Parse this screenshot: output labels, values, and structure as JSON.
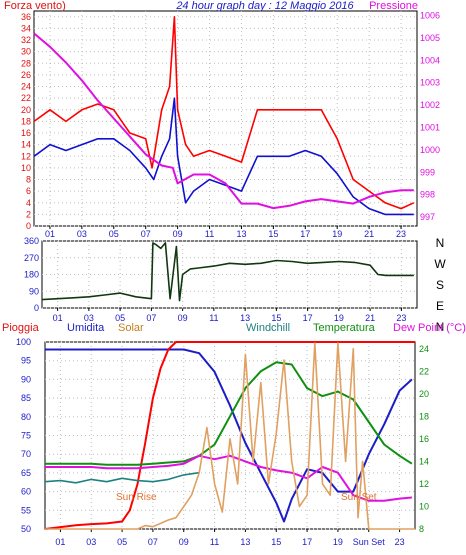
{
  "chart_data": [
    {
      "id": "wind_pressure",
      "type": "line",
      "title": "24 hour graph day : 12 Maggio 2016",
      "left_label": "Forza vento)",
      "right_label": "Pressione",
      "colors": {
        "title": "#1c1cc8",
        "left_label": "#e01010",
        "right_label": "#e010e0",
        "left_ticks": "#e01010",
        "right_ticks": "#e010e0",
        "x_ticks": "#1c1cc8"
      },
      "x_ticks": [
        "01",
        "03",
        "05",
        "07",
        "09",
        "11",
        "13",
        "15",
        "17",
        "19",
        "21",
        "23"
      ],
      "xlim": [
        0,
        24
      ],
      "y_ticks": [
        "0",
        "2",
        "4",
        "6",
        "8",
        "10",
        "12",
        "14",
        "16",
        "18",
        "20",
        "22",
        "24",
        "26",
        "28",
        "30",
        "32",
        "34",
        "36"
      ],
      "ylim": [
        0,
        37
      ],
      "y2_ticks": [
        "997",
        "998",
        "999",
        "1000",
        "1001",
        "1002",
        "1003",
        "1004",
        "1005",
        "1006"
      ],
      "y2lim": [
        996.6,
        1006.2
      ],
      "series": [
        {
          "key": "wind_gust",
          "color": "#ff0000",
          "axis": "left",
          "x": [
            0,
            1,
            2,
            3,
            4,
            5,
            6,
            7,
            7.4,
            8,
            8.5,
            8.8,
            9,
            9.5,
            10,
            11,
            12,
            13,
            14,
            15,
            16,
            17,
            18,
            19,
            20,
            21,
            22,
            23,
            23.8
          ],
          "y": [
            18,
            20,
            18,
            20,
            21,
            20,
            16,
            15,
            10,
            20,
            24,
            36,
            20,
            14,
            12,
            13,
            12,
            11,
            20,
            20,
            20,
            20,
            20,
            15,
            8,
            6,
            4,
            3,
            4
          ]
        },
        {
          "key": "wind_avg",
          "color": "#1010d0",
          "axis": "left",
          "x": [
            0,
            1,
            2,
            3,
            4,
            5,
            6,
            7,
            7.5,
            8,
            8.5,
            8.8,
            9,
            9.5,
            10,
            11,
            12,
            13,
            14,
            15,
            16,
            17,
            18,
            19,
            20,
            21,
            22,
            23,
            23.8
          ],
          "y": [
            12,
            14,
            13,
            14,
            15,
            15,
            13,
            10,
            8,
            12,
            15,
            22,
            12,
            4,
            6,
            8,
            7,
            6,
            12,
            12,
            12,
            13,
            12,
            9,
            5,
            3,
            2,
            2,
            2
          ]
        },
        {
          "key": "pressure",
          "color": "#e010e0",
          "axis": "right",
          "x": [
            0,
            1,
            2,
            3,
            4,
            5,
            6,
            7,
            8,
            8.7,
            9,
            10,
            11,
            12,
            13,
            14,
            15,
            16,
            17,
            18,
            19,
            20,
            21,
            22,
            23,
            23.8
          ],
          "y": [
            1005.2,
            1004.6,
            1003.9,
            1003.1,
            1002.2,
            1001.4,
            1000.6,
            999.8,
            999.3,
            999.2,
            998.5,
            998.9,
            998.9,
            998.5,
            997.6,
            997.6,
            997.4,
            997.5,
            997.7,
            997.8,
            997.7,
            997.6,
            997.9,
            998.1,
            998.2,
            998.2
          ]
        }
      ]
    },
    {
      "id": "wind_direction",
      "type": "line",
      "x_ticks": [
        "01",
        "03",
        "05",
        "07",
        "09",
        "11",
        "13",
        "15",
        "17",
        "19",
        "21",
        "23"
      ],
      "xlim": [
        0,
        24
      ],
      "y_ticks": [
        "0",
        "90",
        "180",
        "270",
        "360"
      ],
      "ylim": [
        0,
        360
      ],
      "compass": [
        "N",
        "W",
        "S",
        "E",
        "N"
      ],
      "colors": {
        "left_ticks": "#1c1cc8",
        "x_ticks": "#1c1cc8"
      },
      "series": [
        {
          "key": "direction",
          "color": "#103810",
          "axis": "left",
          "x": [
            0,
            1,
            2,
            3,
            4,
            5,
            6,
            7,
            7.1,
            7.3,
            7.6,
            7.9,
            8.2,
            8.6,
            8.8,
            9,
            9.5,
            10,
            11,
            12,
            13,
            14,
            15,
            16,
            17,
            18,
            19,
            20,
            21,
            21.5,
            22,
            23,
            23.8
          ],
          "y": [
            45,
            50,
            55,
            60,
            70,
            80,
            60,
            50,
            350,
            340,
            320,
            350,
            50,
            330,
            40,
            180,
            210,
            215,
            225,
            240,
            235,
            240,
            255,
            250,
            240,
            245,
            250,
            245,
            230,
            180,
            175,
            175,
            175
          ]
        }
      ]
    },
    {
      "id": "atmo",
      "type": "line",
      "legend": [
        "Pioggia",
        "Umidita",
        "Solar",
        "Windchill",
        "Temperatura",
        "Dew Point (°C)"
      ],
      "colors": {
        "Pioggia": "#e01010",
        "Umidita": "#1c1cc8",
        "Solar": "#c08020",
        "Windchill": "#208080",
        "Temperatura": "#109010",
        "Dew Point (°C)": "#e010e0",
        "left_ticks": "#1c1cc8",
        "right_ticks": "#109010",
        "x_ticks": "#1c1cc8"
      },
      "annotations": [
        "Sun Rise",
        "Sun Set"
      ],
      "x_ticks": [
        "01",
        "03",
        "05",
        "07",
        "09",
        "11",
        "13",
        "15",
        "17",
        "19",
        "Sun Set",
        "23"
      ],
      "xlim": [
        0,
        24
      ],
      "y_ticks": [
        "50",
        "55",
        "60",
        "65",
        "70",
        "75",
        "80",
        "85",
        "90",
        "95",
        "100"
      ],
      "ylim": [
        50,
        100
      ],
      "y2_ticks": [
        "8",
        "10",
        "12",
        "14",
        "16",
        "18",
        "20",
        "22",
        "24"
      ],
      "y2lim": [
        8,
        24.6
      ],
      "series": [
        {
          "key": "humidity",
          "color": "#1c1cc8",
          "axis": "left",
          "x": [
            0,
            1,
            2,
            3,
            4,
            5,
            6,
            7,
            8,
            9,
            10,
            11,
            12,
            13,
            14,
            15,
            15.5,
            16,
            17,
            18,
            19,
            20,
            21,
            22,
            23,
            23.8
          ],
          "y": [
            98,
            98,
            98,
            98,
            98,
            98,
            98,
            98,
            98,
            98,
            97,
            92,
            83,
            73,
            65,
            57,
            52,
            58,
            66,
            65,
            60,
            60,
            70,
            78,
            87,
            90
          ]
        },
        {
          "key": "rain",
          "color": "#ff0000",
          "axis": "left",
          "x": [
            0,
            1,
            2,
            3,
            4,
            5,
            5.5,
            6,
            6.5,
            7,
            7.5,
            8,
            8.5,
            9,
            24
          ],
          "y": [
            50,
            50.5,
            51,
            51.3,
            51.5,
            52,
            55,
            62,
            73,
            85,
            93,
            98,
            100,
            100,
            100
          ]
        },
        {
          "key": "temperature",
          "color": "#109010",
          "axis": "right",
          "x": [
            0,
            1,
            2,
            3,
            4,
            5,
            6,
            7,
            8,
            9,
            10,
            11,
            12,
            13,
            14,
            15,
            16,
            17,
            18,
            19,
            20,
            21,
            22,
            23,
            23.8
          ],
          "y": [
            13.8,
            13.8,
            13.8,
            13.8,
            13.7,
            13.7,
            13.7,
            13.8,
            13.9,
            14.0,
            14.5,
            15.5,
            18,
            20.5,
            22,
            22.8,
            22.6,
            20.5,
            19.8,
            20.2,
            19.5,
            17.5,
            15.5,
            14.5,
            13.8
          ]
        },
        {
          "key": "windchill",
          "color": "#208080",
          "axis": "right",
          "x": [
            0,
            1,
            2,
            3,
            4,
            5,
            6,
            7,
            8,
            9,
            10
          ],
          "y": [
            12.2,
            12.3,
            12.1,
            12.4,
            12.2,
            12.5,
            12.3,
            12.2,
            12.4,
            12.8,
            13
          ]
        },
        {
          "key": "dewpoint",
          "color": "#e010e0",
          "axis": "right",
          "x": [
            0,
            1,
            2,
            3,
            4,
            5,
            6,
            7,
            8,
            9,
            10,
            11,
            12,
            13,
            14,
            15,
            16,
            17,
            18,
            19,
            20,
            21,
            22,
            23,
            23.8
          ],
          "y": [
            13.5,
            13.5,
            13.5,
            13.5,
            13.4,
            13.4,
            13.4,
            13.5,
            13.6,
            13.8,
            14.5,
            14.2,
            14.5,
            14.0,
            13.5,
            13.2,
            13.0,
            12.5,
            13.5,
            13.0,
            11.0,
            10.5,
            10.5,
            10.7,
            10.8
          ]
        },
        {
          "key": "solar",
          "color": "#e0a060",
          "axis": "right",
          "x": [
            0,
            5,
            6,
            6.5,
            7,
            7.5,
            8,
            8.5,
            9,
            9.5,
            10,
            10.5,
            11,
            11.5,
            12,
            12.5,
            13,
            13.5,
            14,
            14.5,
            15,
            15.5,
            16,
            16.5,
            17,
            17.5,
            18,
            18.5,
            19,
            19.5,
            20,
            20.3,
            20.6,
            21,
            24
          ],
          "y": [
            8,
            8,
            8,
            8.3,
            8.2,
            8.5,
            8.8,
            9,
            10,
            11,
            13,
            17,
            12,
            9.5,
            16,
            12,
            23.5,
            14,
            21,
            12,
            16.5,
            23,
            14,
            10,
            11,
            24.5,
            12,
            11,
            24.5,
            14,
            24,
            9,
            14,
            8,
            8
          ]
        }
      ]
    }
  ]
}
